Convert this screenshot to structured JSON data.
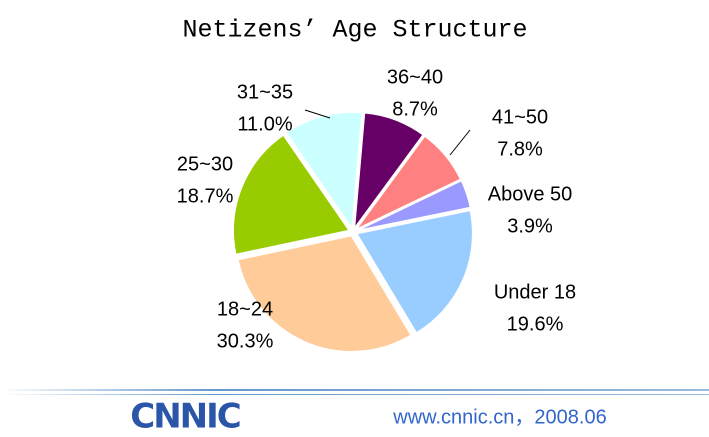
{
  "chart_data": {
    "type": "pie",
    "title": "Netizens’ Age Structure",
    "categories": [
      "36~40",
      "41~50",
      "Above 50",
      "Under 18",
      "18~24",
      "25~30",
      "31~35"
    ],
    "values": [
      8.7,
      7.8,
      3.9,
      19.6,
      30.3,
      18.7,
      11.0
    ],
    "value_labels": [
      "8.7%",
      "7.8%",
      "3.9%",
      "19.6%",
      "30.3%",
      "18.7%",
      "11.0%"
    ],
    "colors": [
      "#660066",
      "#ff8080",
      "#9999ff",
      "#99ccff",
      "#ffcc99",
      "#99cc00",
      "#ccffff"
    ]
  },
  "footer": {
    "logo": "CNNIC",
    "text": "www.cnnic.cn，2008.06"
  }
}
